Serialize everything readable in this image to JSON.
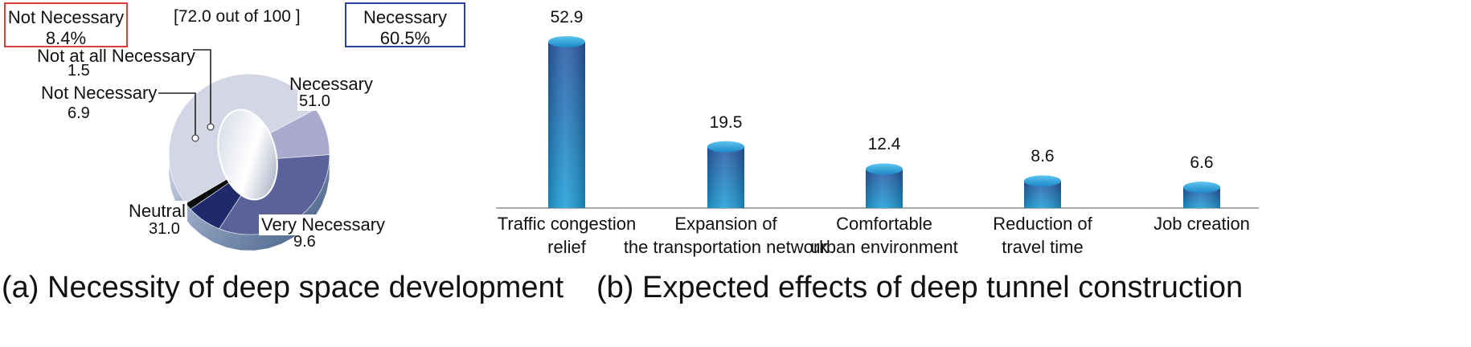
{
  "colors": {
    "red_box": "#e03a3a",
    "blue_box": "#2b3f9c",
    "bar_top": "#2a5aa6",
    "bar_bottom": "#1e9fd8",
    "very_necessary": "#a9aacd",
    "necessary": "#d3d6e4",
    "neutral": "#5a6299",
    "not_necessary": "#1f2a6b",
    "not_at_all": "#0a0a0a"
  },
  "panel_a": {
    "caption": "(a) Necessity of deep space development",
    "score_text": "[72.0 out of 100 ]",
    "summary_not_necessary": {
      "label": "Not Necessary",
      "value": "8.4%"
    },
    "summary_necessary": {
      "label": "Necessary",
      "value": "60.5%"
    }
  },
  "panel_b": {
    "caption": "(b) Expected effects of deep tunnel construction"
  },
  "chart_data": [
    {
      "type": "pie",
      "variant": "donut-3d",
      "slices": [
        {
          "label": "Very Necessary",
          "value": 9.6,
          "display": "9.6",
          "color": "#a9aacd"
        },
        {
          "label": "Necessary",
          "value": 51.0,
          "display": "51.0",
          "color": "#d3d6e4"
        },
        {
          "label": "Not at all Necessary",
          "value": 1.5,
          "display": "1.5",
          "color": "#0a0a0a"
        },
        {
          "label": "Not Necessary",
          "value": 6.9,
          "display": "6.9",
          "color": "#1f2a6b"
        },
        {
          "label": "Neutral",
          "value": 31.0,
          "display": "31.0",
          "color": "#5a6299"
        }
      ]
    },
    {
      "type": "bar",
      "variant": "cylinder",
      "categories": [
        {
          "line1": "Traffic congestion",
          "line2": "relief"
        },
        {
          "line1": "Expansion of",
          "line2": "the transportation network"
        },
        {
          "line1": "Comfortable",
          "line2": "urban environment"
        },
        {
          "line1": "Reduction of",
          "line2": "travel time"
        },
        {
          "line1": "Job creation",
          "line2": ""
        }
      ],
      "values": [
        52.9,
        19.5,
        12.4,
        8.6,
        6.6
      ],
      "value_labels": [
        "52.9",
        "19.5",
        "12.4",
        "8.6",
        "6.6"
      ],
      "ylim": [
        0,
        60
      ]
    }
  ]
}
